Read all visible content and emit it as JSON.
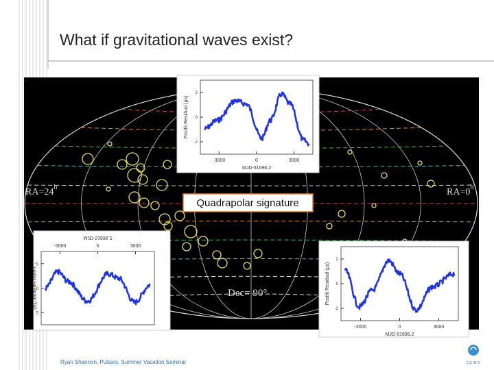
{
  "title": "What if gravitational waves exist?",
  "sky_map": {
    "ra_left": "RA=24",
    "ra_left_sup": "h",
    "ra_right": "RA=0",
    "ra_right_sup": "h",
    "dec": "Dec= 90°",
    "callout": "Quadrapolar signature"
  },
  "plots": [
    {
      "ylabel": "Postfit Residual (μs)",
      "xlabel": "MJD-51696.2",
      "xticks": [
        "-3000",
        "0",
        "3000"
      ],
      "yticks": [
        "2",
        "0",
        "-2"
      ]
    },
    {
      "ylabel": "Postfit Residual (μs)",
      "xlabel": "MJD-51696.2",
      "xticks": [
        "-3000",
        "0",
        "3000"
      ],
      "yticks": [
        "2",
        "0",
        "-2"
      ]
    },
    {
      "ylabel": "Postfit Residual (μs)",
      "xlabel": "MJD-51696.2",
      "xticks": [
        "-3000",
        "0",
        "3000"
      ],
      "yticks": [
        "2",
        "0",
        "-2"
      ]
    }
  ],
  "footer": "Ryan Shannon, Pulsars, Summer Vacation Seminar",
  "logo": "CSIRO"
}
